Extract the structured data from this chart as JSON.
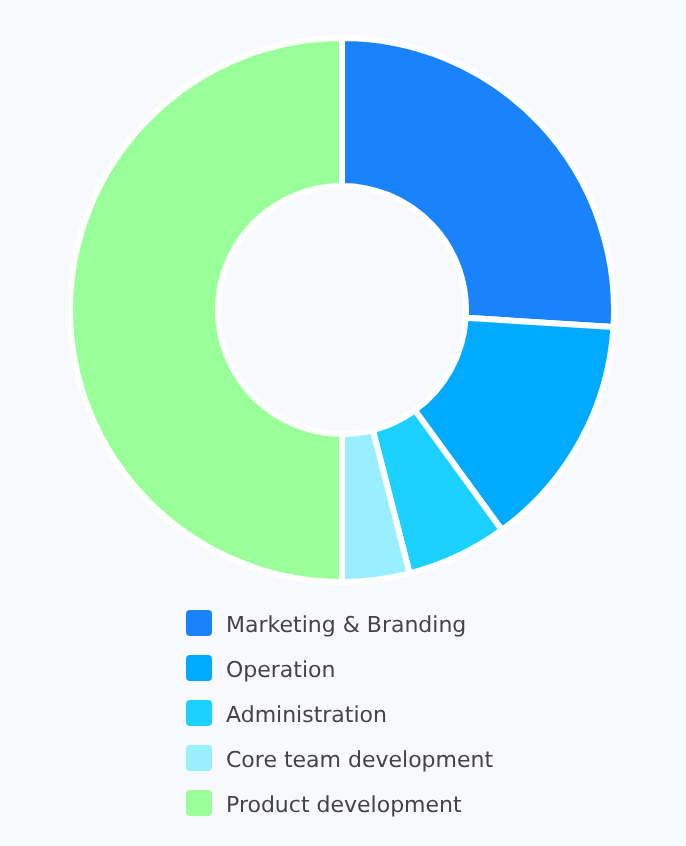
{
  "chart_data": {
    "type": "donut",
    "categories": [
      "Marketing & Branding",
      "Operation",
      "Administration",
      "Core team development",
      "Product development"
    ],
    "values": [
      26,
      14,
      6,
      4,
      50
    ],
    "colors": [
      "#1a82fb",
      "#00aaff",
      "#1ad1ff",
      "#99eeff",
      "#99ff99"
    ],
    "legend": "bottom"
  }
}
